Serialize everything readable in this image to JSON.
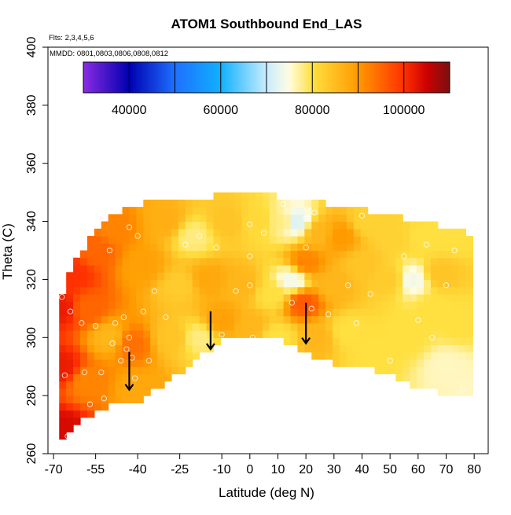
{
  "chart_data": {
    "type": "heatmap",
    "title": "ATOM1 Southbound End_LAS",
    "subtitle_flights": "Flts: 2,3,4,5,6",
    "subtitle_dates": "MMDD: 0801,0803,0806,0808,0812",
    "xlabel": "Latitude (deg N)",
    "ylabel": "Theta (C)",
    "xlim": [
      -72,
      85
    ],
    "ylim": [
      260,
      400
    ],
    "x_ticks": [
      -70,
      -55,
      -40,
      -25,
      -10,
      0,
      10,
      20,
      30,
      40,
      50,
      60,
      70,
      80
    ],
    "y_ticks": [
      260,
      280,
      300,
      320,
      340,
      360,
      380,
      400
    ],
    "colorbar": {
      "min": 30000,
      "max": 110000,
      "tick_values": [
        40000,
        60000,
        80000,
        100000
      ],
      "tick_labels": [
        "40000",
        "60000",
        "80000",
        "100000"
      ],
      "divisions": [
        30000,
        40000,
        50000,
        60000,
        70000,
        80000,
        90000,
        100000,
        110000
      ],
      "color_stops": [
        {
          "value": 30000,
          "color": "#8a2be2"
        },
        {
          "value": 40000,
          "color": "#0000b0"
        },
        {
          "value": 50000,
          "color": "#1e70ff"
        },
        {
          "value": 60000,
          "color": "#10b0ff"
        },
        {
          "value": 70000,
          "color": "#c8ecff"
        },
        {
          "value": 75000,
          "color": "#fffce0"
        },
        {
          "value": 80000,
          "color": "#ffe040"
        },
        {
          "value": 90000,
          "color": "#ff9a00"
        },
        {
          "value": 100000,
          "color": "#ff3000"
        },
        {
          "value": 105000,
          "color": "#cc0000"
        },
        {
          "value": 110000,
          "color": "#7a1010"
        }
      ]
    },
    "coverage_upper": [
      [
        -68,
        312
      ],
      [
        -65,
        322
      ],
      [
        -62,
        328
      ],
      [
        -60,
        330
      ],
      [
        -56,
        336
      ],
      [
        -50,
        342
      ],
      [
        -45,
        344
      ],
      [
        -40,
        346
      ],
      [
        -35,
        347
      ],
      [
        -20,
        347
      ],
      [
        -13,
        349
      ],
      [
        -5,
        350
      ],
      [
        0,
        351
      ],
      [
        5,
        350
      ],
      [
        12,
        348
      ],
      [
        20,
        347
      ],
      [
        30,
        346
      ],
      [
        40,
        344
      ],
      [
        50,
        342
      ],
      [
        60,
        340
      ],
      [
        70,
        338
      ],
      [
        78,
        336
      ]
    ],
    "coverage_lower": [
      [
        -68,
        265
      ],
      [
        -60,
        272
      ],
      [
        -50,
        277
      ],
      [
        -42,
        277
      ],
      [
        -35,
        281
      ],
      [
        -25,
        288
      ],
      [
        -15,
        295
      ],
      [
        -8,
        301
      ],
      [
        0,
        299
      ],
      [
        10,
        300
      ],
      [
        20,
        294
      ],
      [
        30,
        291
      ],
      [
        40,
        290
      ],
      [
        50,
        287
      ],
      [
        55,
        285
      ],
      [
        60,
        283
      ],
      [
        70,
        280
      ],
      [
        78,
        279
      ]
    ],
    "field_points": [
      {
        "lat": -67,
        "theta": 268,
        "value": 104000
      },
      {
        "lat": -67,
        "theta": 290,
        "value": 102000
      },
      {
        "lat": -67,
        "theta": 310,
        "value": 102000
      },
      {
        "lat": -63,
        "theta": 322,
        "value": 100000
      },
      {
        "lat": -58,
        "theta": 285,
        "value": 92000
      },
      {
        "lat": -58,
        "theta": 310,
        "value": 95000
      },
      {
        "lat": -55,
        "theta": 330,
        "value": 95000
      },
      {
        "lat": -50,
        "theta": 300,
        "value": 86000
      },
      {
        "lat": -48,
        "theta": 338,
        "value": 92000
      },
      {
        "lat": -42,
        "theta": 298,
        "value": 94000
      },
      {
        "lat": -40,
        "theta": 282,
        "value": 88000
      },
      {
        "lat": -38,
        "theta": 325,
        "value": 89000
      },
      {
        "lat": -30,
        "theta": 340,
        "value": 87000
      },
      {
        "lat": -28,
        "theta": 300,
        "value": 84000
      },
      {
        "lat": -25,
        "theta": 318,
        "value": 83000
      },
      {
        "lat": -20,
        "theta": 335,
        "value": 78000
      },
      {
        "lat": -18,
        "theta": 300,
        "value": 78000
      },
      {
        "lat": -15,
        "theta": 320,
        "value": 88000
      },
      {
        "lat": -10,
        "theta": 306,
        "value": 89000
      },
      {
        "lat": -8,
        "theta": 340,
        "value": 84000
      },
      {
        "lat": -3,
        "theta": 318,
        "value": 86000
      },
      {
        "lat": 0,
        "theta": 304,
        "value": 86000
      },
      {
        "lat": 3,
        "theta": 340,
        "value": 81000
      },
      {
        "lat": 8,
        "theta": 315,
        "value": 80000
      },
      {
        "lat": 10,
        "theta": 300,
        "value": 80000
      },
      {
        "lat": 12,
        "theta": 340,
        "value": 78000
      },
      {
        "lat": 15,
        "theta": 320,
        "value": 74000
      },
      {
        "lat": 16,
        "theta": 340,
        "value": 72000
      },
      {
        "lat": 19,
        "theta": 312,
        "value": 96000
      },
      {
        "lat": 20,
        "theta": 326,
        "value": 92000
      },
      {
        "lat": 24,
        "theta": 300,
        "value": 86000
      },
      {
        "lat": 25,
        "theta": 336,
        "value": 86000
      },
      {
        "lat": 30,
        "theta": 318,
        "value": 86000
      },
      {
        "lat": 32,
        "theta": 335,
        "value": 90000
      },
      {
        "lat": 35,
        "theta": 302,
        "value": 80000
      },
      {
        "lat": 40,
        "theta": 325,
        "value": 84000
      },
      {
        "lat": 42,
        "theta": 340,
        "value": 82000
      },
      {
        "lat": 45,
        "theta": 295,
        "value": 80000
      },
      {
        "lat": 50,
        "theta": 320,
        "value": 83000
      },
      {
        "lat": 52,
        "theta": 335,
        "value": 82000
      },
      {
        "lat": 56,
        "theta": 300,
        "value": 80000
      },
      {
        "lat": 58,
        "theta": 320,
        "value": 74000
      },
      {
        "lat": 62,
        "theta": 335,
        "value": 80000
      },
      {
        "lat": 65,
        "theta": 310,
        "value": 80000
      },
      {
        "lat": 68,
        "theta": 322,
        "value": 84000
      },
      {
        "lat": 70,
        "theta": 290,
        "value": 76000
      },
      {
        "lat": 72,
        "theta": 335,
        "value": 80000
      },
      {
        "lat": 75,
        "theta": 305,
        "value": 80000
      },
      {
        "lat": 78,
        "theta": 282,
        "value": 76000
      }
    ],
    "markers": [
      {
        "lat": -67,
        "theta": 314
      },
      {
        "lat": -66,
        "theta": 287
      },
      {
        "lat": -65,
        "theta": 266
      },
      {
        "lat": -64,
        "theta": 309
      },
      {
        "lat": -60,
        "theta": 305
      },
      {
        "lat": -59,
        "theta": 288
      },
      {
        "lat": -57,
        "theta": 277
      },
      {
        "lat": -55,
        "theta": 304
      },
      {
        "lat": -53,
        "theta": 288
      },
      {
        "lat": -52,
        "theta": 279
      },
      {
        "lat": -50,
        "theta": 330
      },
      {
        "lat": -49,
        "theta": 298
      },
      {
        "lat": -48,
        "theta": 305
      },
      {
        "lat": -46,
        "theta": 292
      },
      {
        "lat": -45,
        "theta": 307
      },
      {
        "lat": -44,
        "theta": 296
      },
      {
        "lat": -43,
        "theta": 300
      },
      {
        "lat": -43,
        "theta": 338
      },
      {
        "lat": -42,
        "theta": 293
      },
      {
        "lat": -41,
        "theta": 286
      },
      {
        "lat": -40,
        "theta": 335
      },
      {
        "lat": -38,
        "theta": 309
      },
      {
        "lat": -36,
        "theta": 292
      },
      {
        "lat": -34,
        "theta": 316
      },
      {
        "lat": -30,
        "theta": 307
      },
      {
        "lat": -23,
        "theta": 332
      },
      {
        "lat": -18,
        "theta": 335
      },
      {
        "lat": -12,
        "theta": 331
      },
      {
        "lat": -10,
        "theta": 301
      },
      {
        "lat": -5,
        "theta": 316
      },
      {
        "lat": 0,
        "theta": 339
      },
      {
        "lat": 0,
        "theta": 328
      },
      {
        "lat": 0,
        "theta": 318
      },
      {
        "lat": 1,
        "theta": 300
      },
      {
        "lat": 5,
        "theta": 336
      },
      {
        "lat": 12,
        "theta": 346
      },
      {
        "lat": 15,
        "theta": 312
      },
      {
        "lat": 20,
        "theta": 341
      },
      {
        "lat": 20,
        "theta": 331
      },
      {
        "lat": 22,
        "theta": 310
      },
      {
        "lat": 23,
        "theta": 343
      },
      {
        "lat": 28,
        "theta": 308
      },
      {
        "lat": 35,
        "theta": 318
      },
      {
        "lat": 38,
        "theta": 305
      },
      {
        "lat": 40,
        "theta": 342
      },
      {
        "lat": 43,
        "theta": 315
      },
      {
        "lat": 50,
        "theta": 292
      },
      {
        "lat": 55,
        "theta": 328
      },
      {
        "lat": 60,
        "theta": 306
      },
      {
        "lat": 63,
        "theta": 332
      },
      {
        "lat": 65,
        "theta": 300
      },
      {
        "lat": 70,
        "theta": 318
      },
      {
        "lat": 73,
        "theta": 330
      },
      {
        "lat": 76,
        "theta": 282
      }
    ],
    "arrows": [
      {
        "lat": -43,
        "theta_tail": 295,
        "theta_head": 282
      },
      {
        "lat": -14,
        "theta_tail": 309,
        "theta_head": 296
      },
      {
        "lat": 20,
        "theta_tail": 312,
        "theta_head": 298
      }
    ],
    "grid": false,
    "legend": "top colorbar"
  }
}
